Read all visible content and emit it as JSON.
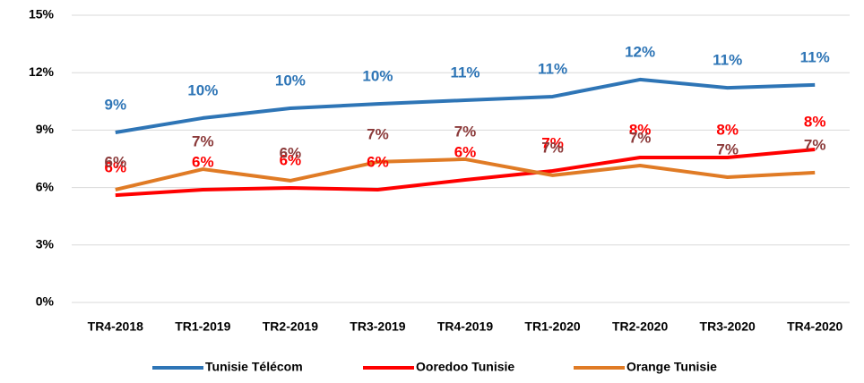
{
  "chart_data": {
    "type": "line",
    "categories": [
      "TR4-2018",
      "TR1-2019",
      "TR2-2019",
      "TR3-2019",
      "TR4-2019",
      "TR1-2020",
      "TR2-2020",
      "TR3-2020",
      "TR4-2020"
    ],
    "series": [
      {
        "name": "Tunisie Télécom",
        "color": "#2e75b6",
        "label_color": "#2e75b6",
        "values": [
          8.88,
          9.63,
          10.14,
          10.37,
          10.56,
          10.75,
          11.64,
          11.21,
          11.36
        ],
        "value_labels": [
          "9%",
          "10%",
          "10%",
          "10%",
          "11%",
          "11%",
          "12%",
          "11%",
          "11%"
        ]
      },
      {
        "name": "Ooredoo Tunisie",
        "color": "#ff0000",
        "label_color": "#ff0000",
        "values": [
          5.6,
          5.89,
          5.98,
          5.89,
          6.4,
          6.87,
          7.57,
          7.57,
          7.99
        ],
        "value_labels": [
          "6%",
          "6%",
          "6%",
          "6%",
          "6%",
          "7%",
          "8%",
          "8%",
          "8%"
        ]
      },
      {
        "name": "Orange Tunisie",
        "color": "#e07b25",
        "label_color": "#8b3a3a",
        "values": [
          5.89,
          6.96,
          6.36,
          7.34,
          7.48,
          6.64,
          7.15,
          6.54,
          6.78
        ],
        "value_labels": [
          "6%",
          "7%",
          "6%",
          "7%",
          "7%",
          "7%",
          "7%",
          "7%",
          "7%"
        ]
      }
    ],
    "ylim": [
      0,
      15
    ],
    "yticks": [
      {
        "value": 0,
        "label": "0%"
      },
      {
        "value": 3,
        "label": "3%"
      },
      {
        "value": 6,
        "label": "6%"
      },
      {
        "value": 9,
        "label": "9%"
      },
      {
        "value": 12,
        "label": "12%"
      },
      {
        "value": 15,
        "label": "15%"
      }
    ],
    "grid": true,
    "legend": "bottom"
  }
}
